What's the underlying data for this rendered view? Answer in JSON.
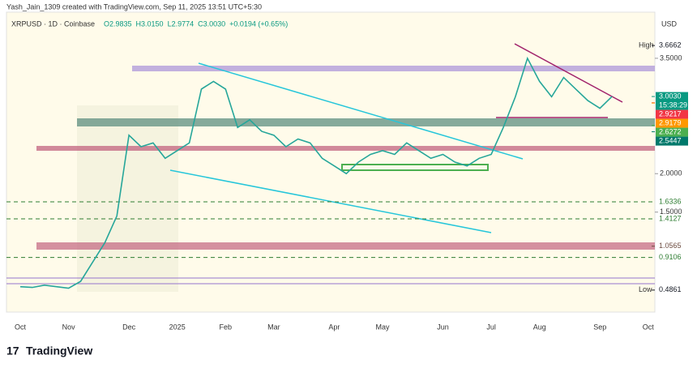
{
  "header": {
    "credit": "Yash_Jain_1309 created with TradingView.com, Sep 11, 2025 13:51 UTC+5:30",
    "symbol": "XRPUSD · 1D · Coinbase",
    "ohlc": [
      "O2.9835",
      "H3.0150",
      "L2.9774",
      "C3.0030"
    ],
    "change": "+0.0194 (+0.65%)",
    "currency": "USD"
  },
  "footer": {
    "brand": "TradingView"
  },
  "chart_data": {
    "type": "line",
    "color": "#26a69a",
    "categories": [
      "Oct",
      null,
      null,
      null,
      "Nov",
      null,
      null,
      null,
      null,
      "Dec",
      null,
      null,
      null,
      "2025",
      null,
      null,
      null,
      "Feb",
      null,
      null,
      null,
      "Mar",
      null,
      null,
      null,
      null,
      "Apr",
      null,
      null,
      null,
      "May",
      null,
      null,
      null,
      null,
      "Jun",
      null,
      null,
      null,
      "Jul",
      null,
      null,
      null,
      "Aug",
      null,
      null,
      null,
      null,
      "Sep",
      null,
      null,
      null,
      "Oct"
    ],
    "values": [
      0.53,
      0.52,
      0.55,
      0.53,
      0.51,
      0.6,
      0.85,
      1.1,
      1.45,
      2.5,
      2.35,
      2.4,
      2.2,
      2.3,
      2.4,
      3.1,
      3.2,
      3.1,
      2.6,
      2.7,
      2.55,
      2.5,
      2.35,
      2.45,
      2.4,
      2.2,
      2.1,
      2.0,
      2.15,
      2.25,
      2.3,
      2.25,
      2.4,
      2.3,
      2.2,
      2.25,
      2.15,
      2.1,
      2.2,
      2.25,
      2.6,
      3.0,
      3.5,
      3.2,
      3.0,
      3.25,
      3.1,
      2.95,
      2.85,
      3.003,
      null,
      null,
      null
    ],
    "ylim": [
      0.2,
      4.1
    ],
    "yticks": [
      {
        "value": 3.5,
        "label": "3.5000"
      },
      {
        "value": 2.0,
        "label": "2.0000"
      },
      {
        "value": 1.5,
        "label": "1.5000"
      }
    ],
    "levels": [
      {
        "name": "High",
        "value": 3.6662,
        "color": "#131722",
        "box": false
      },
      {
        "value": 3.003,
        "label": "3.0030",
        "sub": "15:38:29",
        "color": "#089981",
        "box": true
      },
      {
        "value": 2.9217,
        "color": "#f23645",
        "box": true
      },
      {
        "value": 2.9179,
        "color": "#ff9800",
        "box": true
      },
      {
        "value": 2.6272,
        "color": "#4caf50",
        "box": true
      },
      {
        "value": 2.5447,
        "color": "#00796b",
        "box": true
      },
      {
        "value": 1.6336,
        "color": "#2e7d32",
        "box": false,
        "dashed": true
      },
      {
        "value": 1.4127,
        "color": "#2e7d32",
        "box": false,
        "dashed": true
      },
      {
        "value": 1.0565,
        "color": "#6d4c41",
        "box": false
      },
      {
        "value": 0.9106,
        "color": "#2e7d32",
        "box": false,
        "dashed": true
      },
      {
        "name": "Low",
        "value": 0.4861,
        "color": "#131722",
        "box": false
      }
    ]
  }
}
